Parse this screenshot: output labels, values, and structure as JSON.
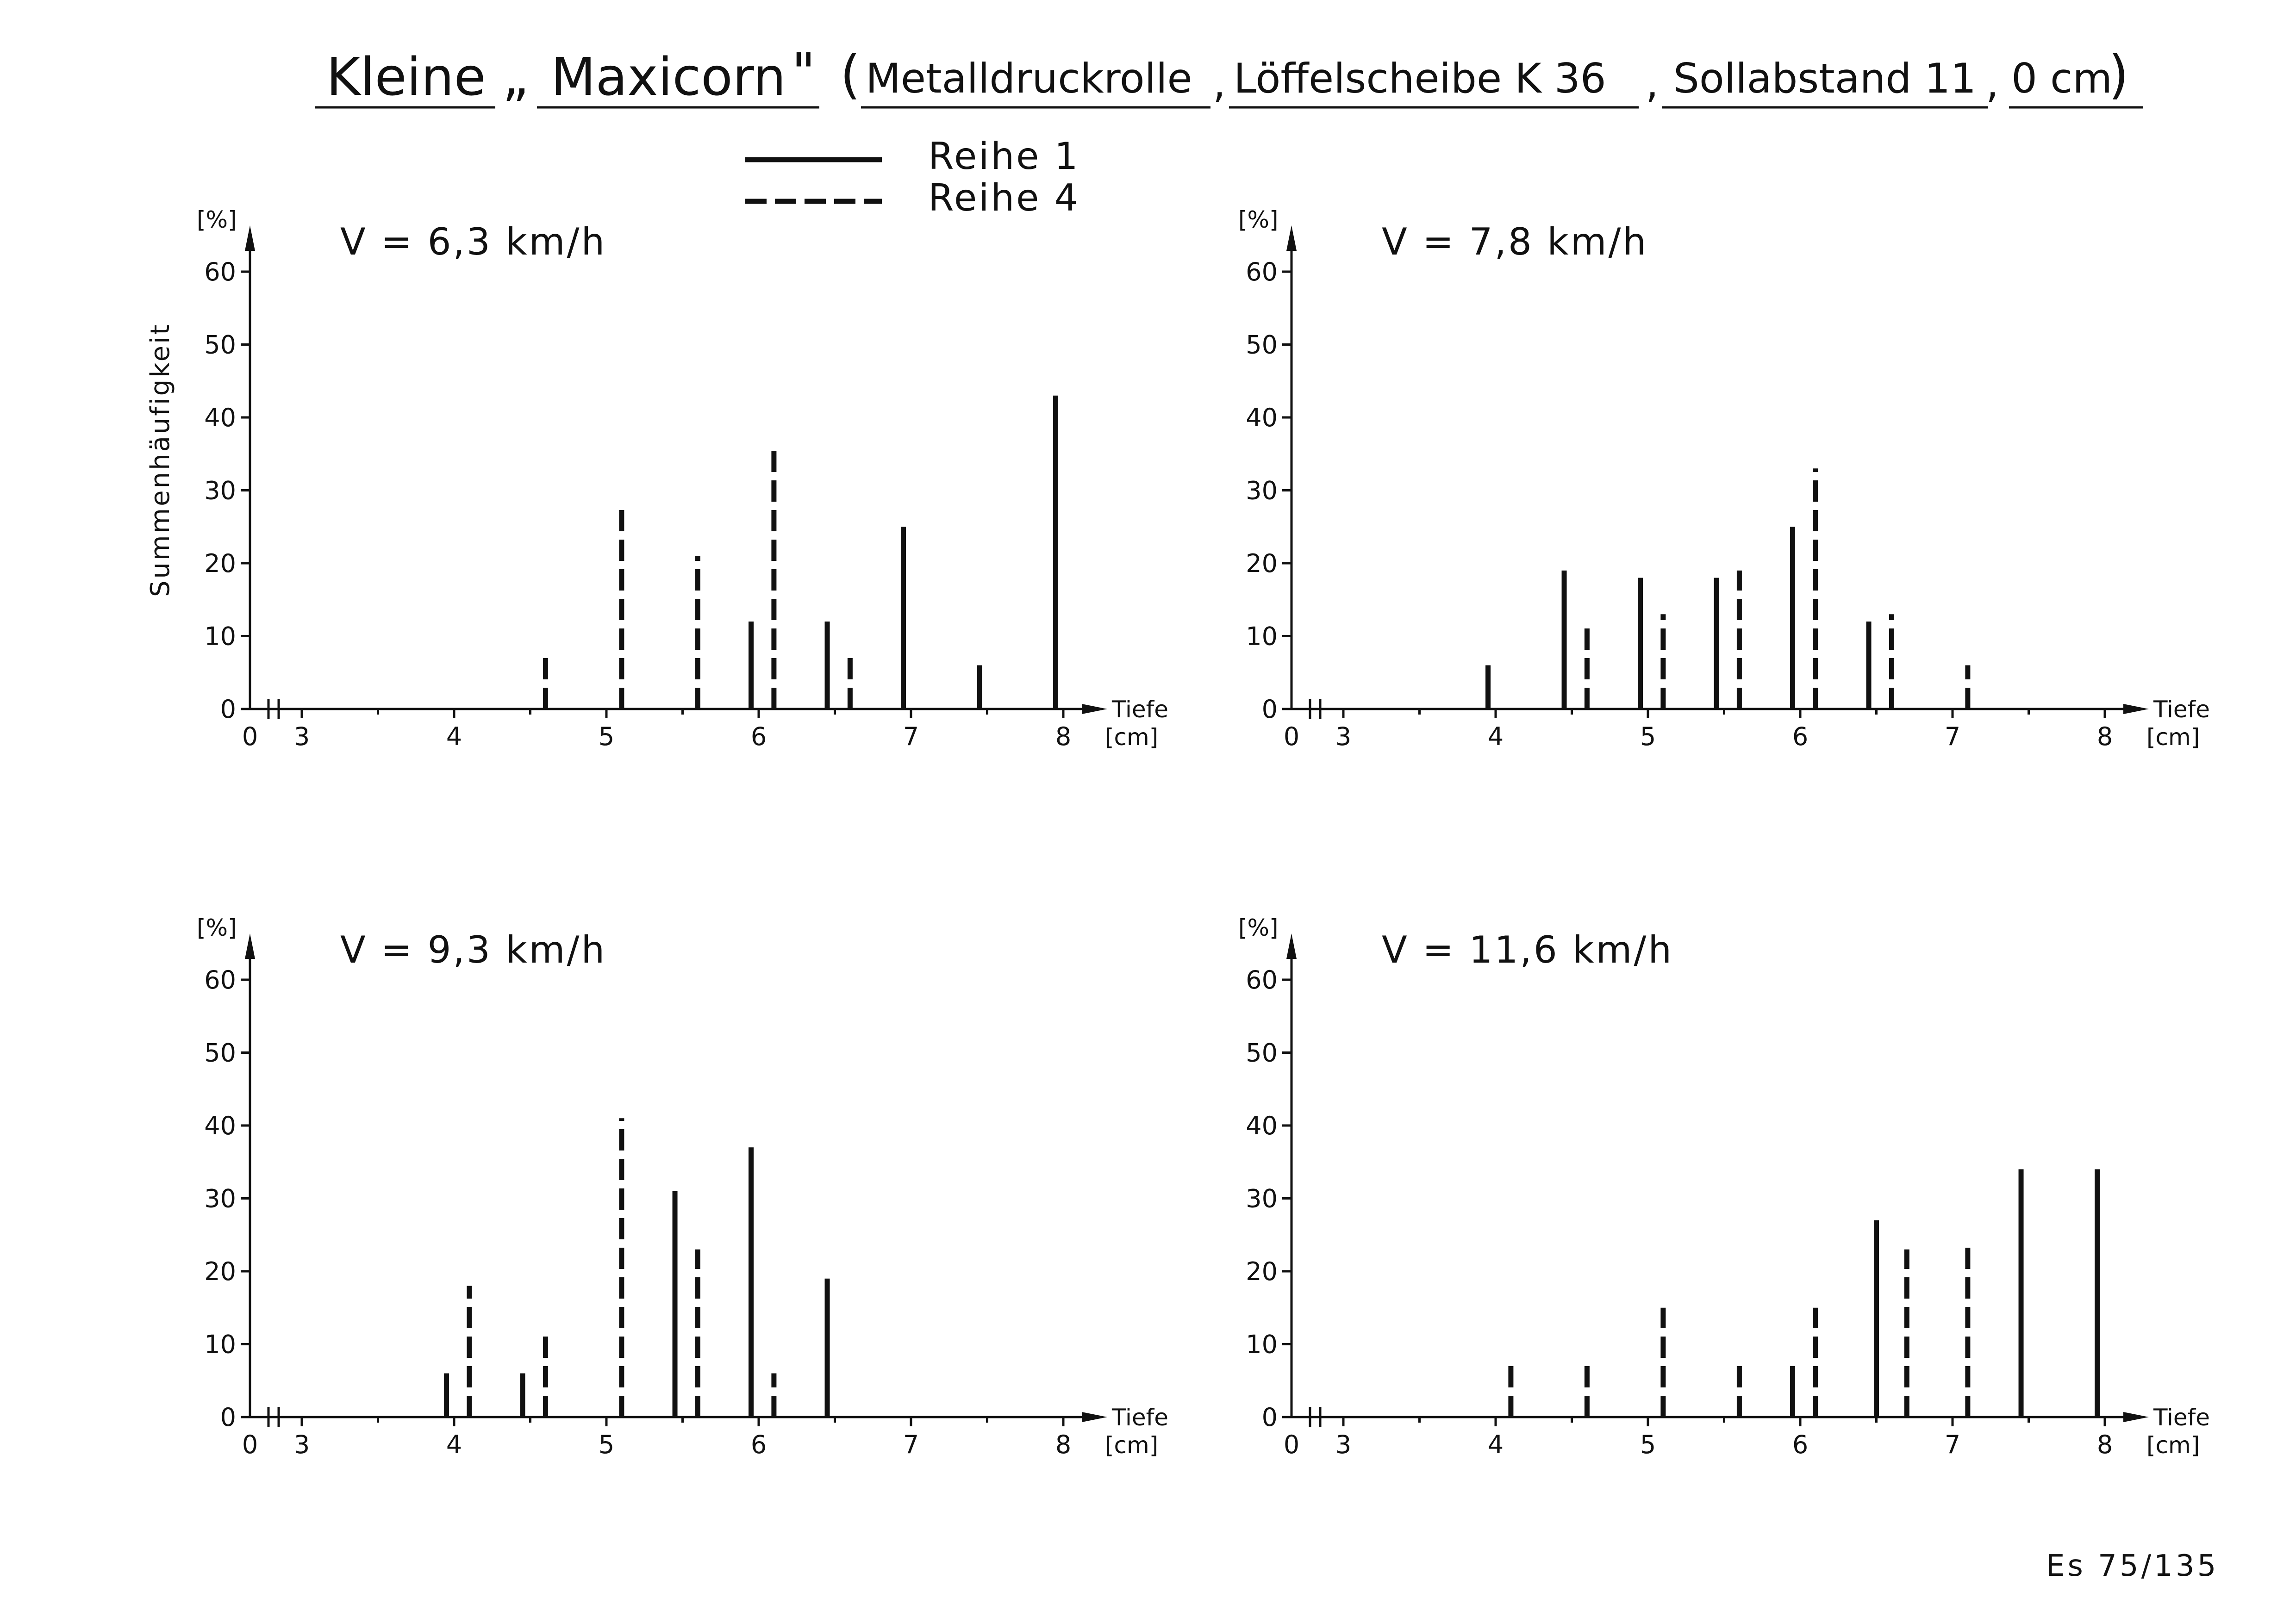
{
  "title": {
    "parts": [
      "Kleine",
      "„",
      "Maxicorn",
      "\"",
      "(",
      "Metalldruckrolle",
      ",",
      "Löffelscheibe K 36",
      ",",
      "Sollabstand 11",
      ",",
      "0 cm",
      ")"
    ]
  },
  "legend": [
    {
      "label": "Reihe 1",
      "style": "solid"
    },
    {
      "label": "Reihe 4",
      "style": "dashed"
    }
  ],
  "ylabel": "Summenhäufigkeit",
  "page_id": "Es 75/135",
  "colors": {
    "ink": "#111111",
    "background": "#ffffff"
  },
  "chart_data": [
    {
      "type": "bar",
      "speed_label": "V = 6,3 km/h",
      "y_unit": "[%]",
      "x_label": "Tiefe",
      "x_unit": "[cm]",
      "x_ticks": [
        "0",
        "3",
        "4",
        "5",
        "6",
        "7",
        "8"
      ],
      "y_ticks": [
        "0",
        "10",
        "20",
        "30",
        "40",
        "50",
        "60"
      ],
      "ylim": [
        0,
        60
      ],
      "xlim": [
        3,
        8
      ],
      "x_axis_break": true,
      "series": [
        {
          "name": "Reihe 1",
          "style": "solid",
          "x": [
            5.95,
            6.45,
            6.95,
            7.45,
            7.95
          ],
          "y": [
            12,
            12,
            25,
            6,
            43
          ]
        },
        {
          "name": "Reihe 4",
          "style": "dashed",
          "x": [
            4.6,
            5.1,
            5.6,
            6.1,
            6.6
          ],
          "y": [
            7,
            28,
            21,
            36,
            7
          ]
        }
      ]
    },
    {
      "type": "bar",
      "speed_label": "V = 7,8 km/h",
      "y_unit": "[%]",
      "x_label": "Tiefe",
      "x_unit": "[cm]",
      "x_ticks": [
        "0",
        "3",
        "4",
        "5",
        "6",
        "7",
        "8"
      ],
      "y_ticks": [
        "0",
        "10",
        "20",
        "30",
        "40",
        "50",
        "60"
      ],
      "ylim": [
        0,
        60
      ],
      "xlim": [
        3,
        8
      ],
      "x_axis_break": true,
      "series": [
        {
          "name": "Reihe 1",
          "style": "solid",
          "x": [
            3.95,
            4.45,
            4.95,
            5.45,
            5.95,
            6.45
          ],
          "y": [
            6,
            19,
            18,
            18,
            25,
            12
          ]
        },
        {
          "name": "Reihe 4",
          "style": "dashed",
          "x": [
            4.6,
            5.1,
            5.6,
            6.1,
            6.6,
            7.1
          ],
          "y": [
            12,
            13,
            19,
            33,
            13,
            6
          ]
        }
      ]
    },
    {
      "type": "bar",
      "speed_label": "V = 9,3 km/h",
      "y_unit": "[%]",
      "x_label": "Tiefe",
      "x_unit": "[cm]",
      "x_ticks": [
        "0",
        "3",
        "4",
        "5",
        "6",
        "7",
        "8"
      ],
      "y_ticks": [
        "0",
        "10",
        "20",
        "30",
        "40",
        "50",
        "60"
      ],
      "ylim": [
        0,
        60
      ],
      "xlim": [
        3,
        8
      ],
      "x_axis_break": true,
      "series": [
        {
          "name": "Reihe 1",
          "style": "solid",
          "x": [
            3.95,
            4.45,
            5.45,
            5.95,
            6.45
          ],
          "y": [
            6,
            6,
            31,
            37,
            19
          ]
        },
        {
          "name": "Reihe 4",
          "style": "dashed",
          "x": [
            4.1,
            4.6,
            5.1,
            5.6,
            6.1
          ],
          "y": [
            18,
            12,
            41,
            23,
            6
          ]
        }
      ]
    },
    {
      "type": "bar",
      "speed_label": "V = 11,6 km/h",
      "y_unit": "[%]",
      "x_label": "Tiefe",
      "x_unit": "[cm]",
      "x_ticks": [
        "0",
        "3",
        "4",
        "5",
        "6",
        "7",
        "8"
      ],
      "y_ticks": [
        "0",
        "10",
        "20",
        "30",
        "40",
        "50",
        "60"
      ],
      "ylim": [
        0,
        60
      ],
      "xlim": [
        3,
        8
      ],
      "x_axis_break": true,
      "series": [
        {
          "name": "Reihe 1",
          "style": "solid",
          "x": [
            5.95,
            6.5,
            7.45,
            7.95
          ],
          "y": [
            7,
            27,
            34,
            34
          ]
        },
        {
          "name": "Reihe 4",
          "style": "dashed",
          "x": [
            4.1,
            4.6,
            5.1,
            5.6,
            6.1,
            6.7,
            7.1
          ],
          "y": [
            8,
            8,
            15,
            8,
            15,
            23,
            24
          ]
        }
      ]
    }
  ]
}
